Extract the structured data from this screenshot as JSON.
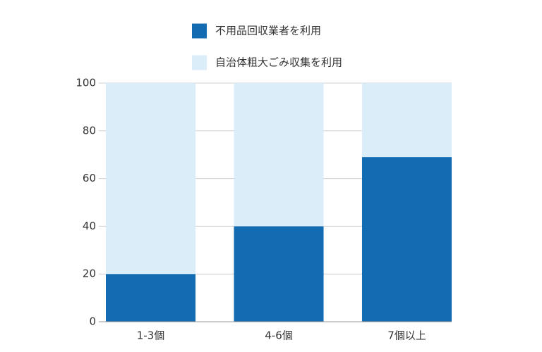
{
  "chart_data": {
    "type": "stacked-bar",
    "categories": [
      "1-3個",
      "4-6個",
      "7個以上"
    ],
    "series": [
      {
        "name": "不用品回収業者を利用",
        "color": "#136cb1",
        "values": [
          20,
          40,
          69
        ]
      },
      {
        "name": "自治体粗大ごみ収集を利用",
        "color": "#daedf8",
        "values": [
          80,
          60,
          31
        ]
      }
    ],
    "ylim": [
      0,
      100
    ],
    "yticks": [
      0,
      20,
      40,
      60,
      80,
      100
    ],
    "grid": true
  }
}
